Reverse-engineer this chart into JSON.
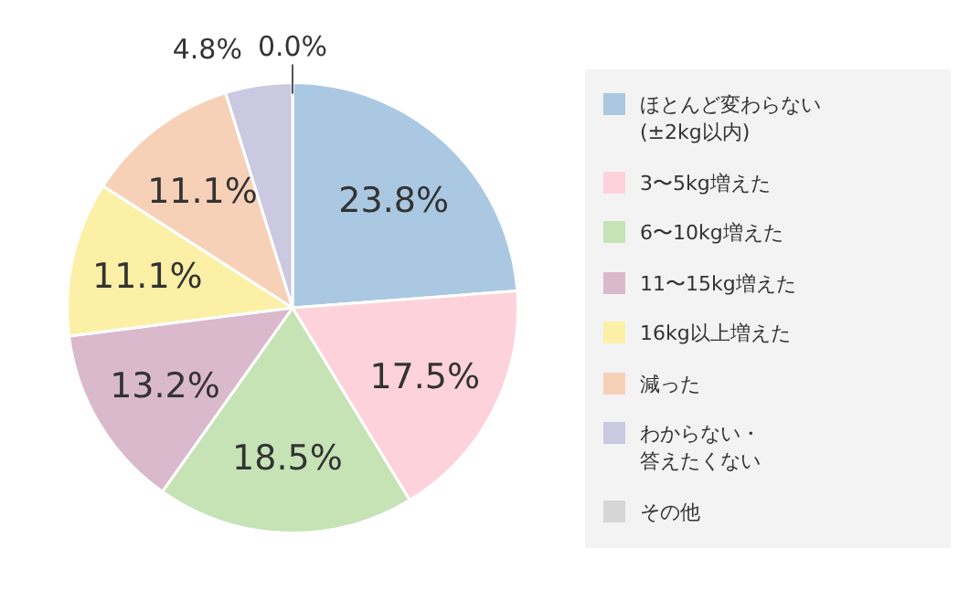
{
  "chart_data": {
    "type": "pie",
    "categories": [
      "ほとんど変わらない(±2kg以内)",
      "3〜5kg増えた",
      "6〜10kg増えた",
      "11〜15kg増えた",
      "16kg以上増えた",
      "減った",
      "わからない・答えたくない",
      "その他"
    ],
    "values": [
      23.8,
      17.5,
      18.5,
      13.2,
      11.1,
      11.1,
      4.8,
      0.0
    ],
    "colors": [
      "#aac8e2",
      "#fed2da",
      "#c6e3b5",
      "#dab9cd",
      "#fbf0a6",
      "#f6d1b8",
      "#cbc8e2",
      "#d6d6d6"
    ],
    "value_labels": [
      "23.8%",
      "17.5%",
      "18.5%",
      "13.2%",
      "11.1%",
      "11.1%",
      "4.8%",
      "0.0%"
    ],
    "legend": "right"
  }
}
